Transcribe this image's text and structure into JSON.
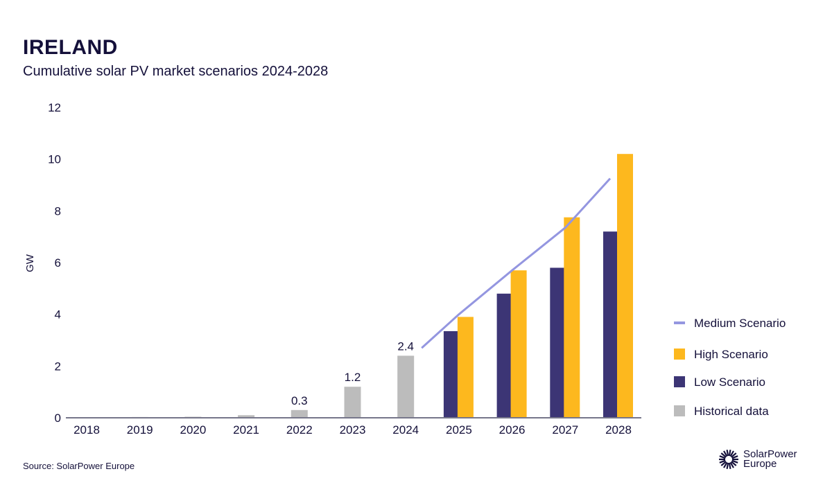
{
  "header": {
    "title": "IRELAND",
    "subtitle": "Cumulative solar PV market scenarios 2024-2028"
  },
  "footer": {
    "source": "Source: SolarPower Europe",
    "logo_text_line1": "SolarPower",
    "logo_text_line2": "Europe"
  },
  "chart_data": {
    "type": "bar",
    "ylabel": "GW",
    "ylim": [
      0,
      12
    ],
    "yticks": [
      0,
      2,
      4,
      6,
      8,
      10,
      12
    ],
    "categories": [
      "2018",
      "2019",
      "2020",
      "2021",
      "2022",
      "2023",
      "2024",
      "2025",
      "2026",
      "2027",
      "2028"
    ],
    "series": [
      {
        "name": "Historical data",
        "type": "bar",
        "color": "#bcbcbc",
        "values": [
          0.02,
          0.03,
          0.04,
          0.1,
          0.3,
          1.2,
          2.4,
          null,
          null,
          null,
          null
        ],
        "labels": [
          null,
          null,
          null,
          null,
          "0.3",
          "1.2",
          "2.4",
          null,
          null,
          null,
          null
        ]
      },
      {
        "name": "Low Scenario",
        "type": "bar",
        "color": "#3c3575",
        "values": [
          null,
          null,
          null,
          null,
          null,
          null,
          null,
          3.35,
          4.8,
          5.8,
          7.2
        ]
      },
      {
        "name": "High Scenario",
        "type": "bar",
        "color": "#fdb81e",
        "values": [
          null,
          null,
          null,
          null,
          null,
          null,
          null,
          3.9,
          5.7,
          7.75,
          10.2
        ]
      },
      {
        "name": "Medium Scenario",
        "type": "line",
        "color": "#9496e0",
        "values": [
          null,
          null,
          null,
          null,
          null,
          null,
          2.7,
          4.0,
          5.7,
          7.35,
          9.25
        ]
      }
    ],
    "legend_order": [
      "Medium Scenario",
      "High Scenario",
      "Low Scenario",
      "Historical data"
    ],
    "legend_position": "right",
    "grid": false
  }
}
